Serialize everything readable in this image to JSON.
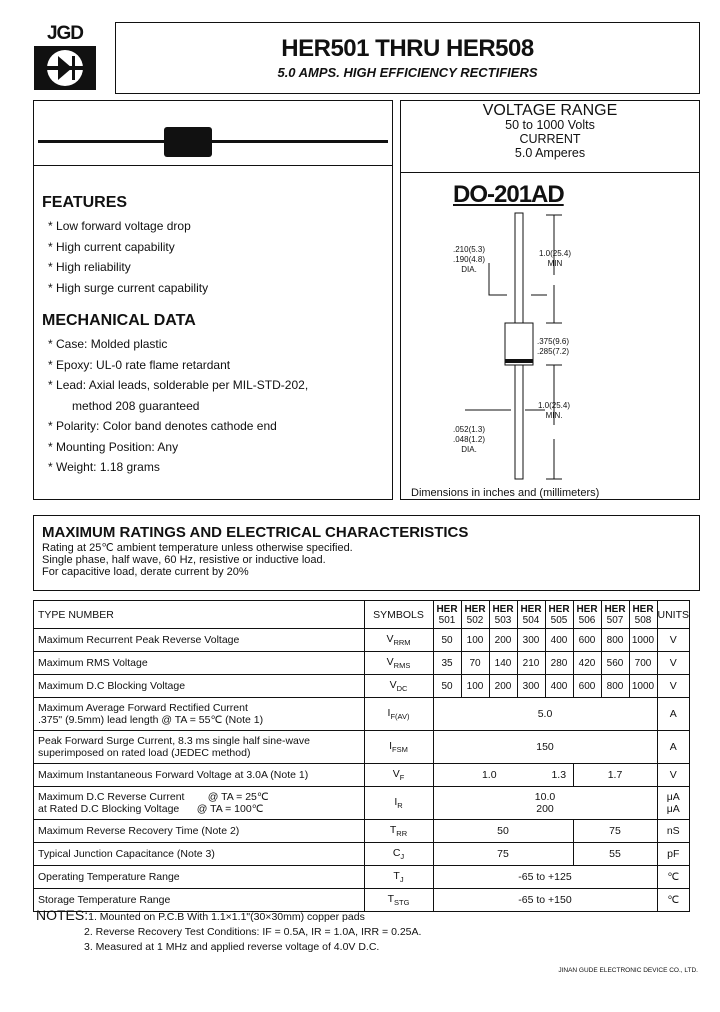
{
  "logo": {
    "text": "JGD",
    "icon": "diode-logo-icon"
  },
  "header": {
    "title": "HER501 THRU HER508",
    "subtitle": "5.0 AMPS. HIGH EFFICIENCY RECTIFIERS"
  },
  "specs": {
    "voltage_label": "VOLTAGE RANGE",
    "voltage_value": "50 to 1000 Volts",
    "current_label": "CURRENT",
    "current_value": "5.0 Amperes"
  },
  "package": {
    "name": "DO-201AD",
    "dim_lead_dia_1": ".210(5.3)",
    "dim_lead_dia_2": ".190(4.8)",
    "dim_dia": "DIA.",
    "dim_lead_len": "1.0(25.4)",
    "dim_min": "MIN",
    "dim_body_1": ".375(9.6)",
    "dim_body_2": ".285(7.2)",
    "dim_lead_len2": "1.0(25.4)",
    "dim_min2": "MIN.",
    "dim_wire_1": ".052(1.3)",
    "dim_wire_2": ".048(1.2)",
    "dim_dia2": "DIA.",
    "caption": "Dimensions in inches and (millimeters)"
  },
  "features": {
    "title": "FEATURES",
    "items": [
      "Low forward voltage drop",
      "High current capability",
      "High reliability",
      "High surge current capability"
    ]
  },
  "mechanical": {
    "title": "MECHANICAL DATA",
    "items": [
      "Case: Molded plastic",
      "Epoxy: UL-0 rate flame retardant",
      "Lead: Axial leads, solderable per MIL-STD-202,",
      "Polarity: Color band denotes cathode end",
      "Mounting Position: Any",
      "Weight: 1.18 grams"
    ],
    "lead_cont": "method 208 guaranteed"
  },
  "ratings": {
    "title": "MAXIMUM RATINGS AND ELECTRICAL CHARACTERISTICS",
    "lines": [
      "Rating at 25℃ ambient temperature unless otherwise specified.",
      "Single phase, half wave, 60 Hz, resistive or inductive load.",
      "For capacitive load, derate current by 20%"
    ]
  },
  "table": {
    "head": {
      "type": "TYPE NUMBER",
      "symbols": "SYMBOLS",
      "prefix": "HER",
      "models": [
        "501",
        "502",
        "503",
        "504",
        "505",
        "506",
        "507",
        "508"
      ],
      "units": "UNITS"
    },
    "rows": [
      {
        "param": "Maximum Recurrent Peak Reverse Voltage",
        "sym": "V",
        "sub": "RRM",
        "vals": [
          "50",
          "100",
          "200",
          "300",
          "400",
          "600",
          "800",
          "1000"
        ],
        "unit": "V"
      },
      {
        "param": "Maximum RMS Voltage",
        "sym": "V",
        "sub": "RMS",
        "vals": [
          "35",
          "70",
          "140",
          "210",
          "280",
          "420",
          "560",
          "700"
        ],
        "unit": "V"
      },
      {
        "param": "Maximum D.C Blocking Voltage",
        "sym": "V",
        "sub": "DC",
        "vals": [
          "50",
          "100",
          "200",
          "300",
          "400",
          "600",
          "800",
          "1000"
        ],
        "unit": "V"
      }
    ],
    "if": {
      "param1": "Maximum Average Forward Rectified Current",
      "param2": ".375\" (9.5mm) lead length @ TA = 55℃ (Note 1)",
      "sym": "I",
      "sub": "F(AV)",
      "val": "5.0",
      "unit": "A"
    },
    "ifsm": {
      "param1": "Peak Forward Surge Current, 8.3 ms single half sine-wave",
      "param2": "superimposed on rated load (JEDEC method)",
      "sym": "I",
      "sub": "FSM",
      "val": "150",
      "unit": "A"
    },
    "vf": {
      "param": "Maximum Instantaneous Forward Voltage at 3.0A (Note 1)",
      "sym": "V",
      "sub": "F",
      "v1": "1.0",
      "v2": "1.3",
      "v3": "1.7",
      "unit": "V"
    },
    "ir": {
      "param1": "Maximum D.C Reverse Current        @ TA = 25℃",
      "param2": "at Rated D.C Blocking Voltage      @ TA = 100℃",
      "sym": "I",
      "sub": "R",
      "val1": "10.0",
      "val2": "200",
      "unit1": "μA",
      "unit2": "μA"
    },
    "trr": {
      "param": "Maximum Reverse Recovery Time (Note 2)",
      "sym": "T",
      "sub": "RR",
      "v1": "50",
      "v2": "75",
      "unit": "nS"
    },
    "cj": {
      "param": "Typical Junction Capacitance (Note 3)",
      "sym": "C",
      "sub": "J",
      "v1": "75",
      "v2": "55",
      "unit": "pF"
    },
    "tj": {
      "param": "Operating Temperature Range",
      "sym": "T",
      "sub": "J",
      "val": "-65 to +125",
      "unit": "℃"
    },
    "tstg": {
      "param": "Storage Temperature Range",
      "sym": "T",
      "sub": "STG",
      "val": "-65 to +150",
      "unit": "℃"
    }
  },
  "notes": {
    "label": "NOTES:",
    "items": [
      "1. Mounted on P.C.B With 1.1×1.1\"(30×30mm) copper pads",
      "2. Reverse Recovery Test Conditions: IF = 0.5A, IR = 1.0A, IRR = 0.25A.",
      "3. Measured at 1 MHz and applied reverse voltage of 4.0V D.C."
    ]
  },
  "footer": "JINAN GUDE ELECTRONIC DEVICE CO., LTD."
}
